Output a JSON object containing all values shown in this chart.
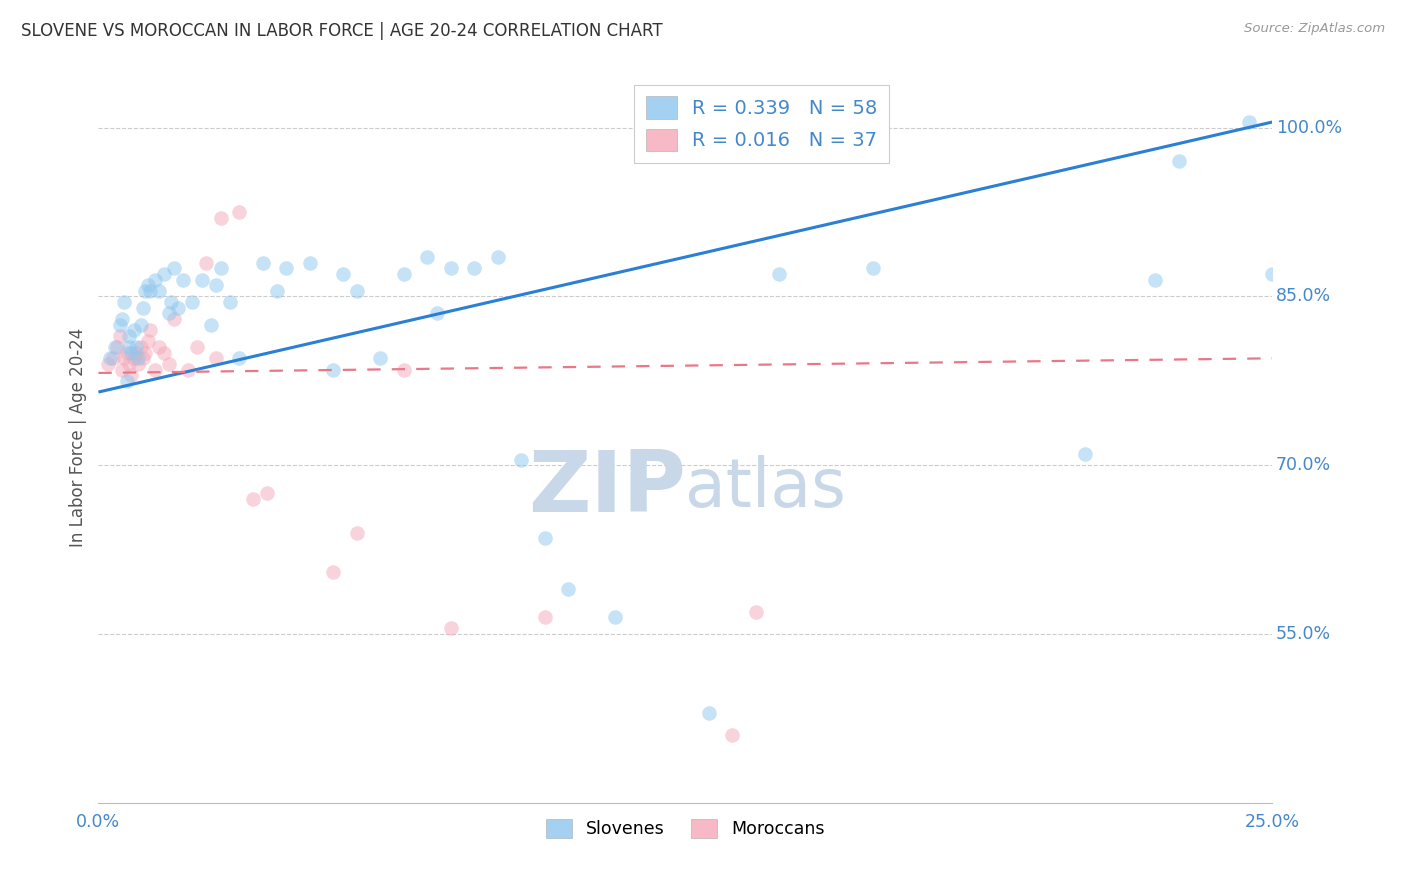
{
  "title": "SLOVENE VS MOROCCAN IN LABOR FORCE | AGE 20-24 CORRELATION CHART",
  "source": "Source: ZipAtlas.com",
  "ylabel": "In Labor Force | Age 20-24",
  "xmin": 0.0,
  "xmax": 25.0,
  "ymin": 40.0,
  "ymax": 105.0,
  "ytick_values": [
    55.0,
    70.0,
    85.0,
    100.0
  ],
  "ytick_labels": [
    "55.0%",
    "70.0%",
    "85.0%",
    "100.0%"
  ],
  "xtick_values": [
    0.0,
    25.0
  ],
  "xtick_labels": [
    "0.0%",
    "25.0%"
  ],
  "slovene_R": "R = 0.339",
  "slovene_N": "N = 58",
  "moroccan_R": "R = 0.016",
  "moroccan_N": "N = 37",
  "slovene_dot_color": "#8EC6EE",
  "moroccan_dot_color": "#F5A8B8",
  "slovene_line_color": "#2B7FD4",
  "moroccan_line_color": "#E87888",
  "watermark_color": "#C8D8E8",
  "label_color": "#4488CC",
  "title_color": "#333333",
  "source_color": "#999999",
  "grid_color": "#CCCCCC",
  "background": "#FFFFFF",
  "dot_size": 110,
  "dot_alpha": 0.5,
  "slovene_x": [
    0.25,
    0.35,
    0.45,
    0.5,
    0.55,
    0.6,
    0.65,
    0.65,
    0.7,
    0.75,
    0.8,
    0.85,
    0.9,
    0.95,
    1.0,
    1.05,
    1.1,
    1.2,
    1.3,
    1.4,
    1.5,
    1.55,
    1.6,
    1.7,
    1.8,
    2.0,
    2.2,
    2.4,
    2.5,
    2.6,
    2.8,
    3.0,
    3.5,
    3.8,
    4.0,
    4.5,
    5.0,
    5.2,
    5.5,
    6.0,
    6.5,
    7.0,
    7.2,
    7.5,
    8.0,
    8.5,
    9.0,
    9.5,
    10.0,
    11.0,
    13.0,
    14.5,
    16.5,
    21.0,
    22.5,
    23.0,
    24.5,
    25.0
  ],
  "slovene_y": [
    79.5,
    80.5,
    82.5,
    83.0,
    84.5,
    77.5,
    80.5,
    81.5,
    80.0,
    82.0,
    80.5,
    79.5,
    82.5,
    84.0,
    85.5,
    86.0,
    85.5,
    86.5,
    85.5,
    87.0,
    83.5,
    84.5,
    87.5,
    84.0,
    86.5,
    84.5,
    86.5,
    82.5,
    86.0,
    87.5,
    84.5,
    79.5,
    88.0,
    85.5,
    87.5,
    88.0,
    78.5,
    87.0,
    85.5,
    79.5,
    87.0,
    88.5,
    83.5,
    87.5,
    87.5,
    88.5,
    70.5,
    63.5,
    59.0,
    56.5,
    48.0,
    87.0,
    87.5,
    71.0,
    86.5,
    97.0,
    100.5,
    87.0
  ],
  "moroccan_x": [
    0.2,
    0.3,
    0.4,
    0.45,
    0.5,
    0.55,
    0.6,
    0.65,
    0.7,
    0.75,
    0.8,
    0.85,
    0.9,
    0.95,
    1.0,
    1.05,
    1.1,
    1.2,
    1.3,
    1.4,
    1.5,
    1.6,
    1.9,
    2.1,
    2.3,
    2.5,
    2.6,
    3.0,
    3.3,
    3.6,
    5.0,
    5.5,
    6.5,
    7.5,
    9.5,
    13.5,
    14.0
  ],
  "moroccan_y": [
    79.0,
    79.5,
    80.5,
    81.5,
    78.5,
    79.5,
    80.0,
    79.0,
    78.0,
    79.5,
    80.0,
    79.0,
    80.5,
    79.5,
    80.0,
    81.0,
    82.0,
    78.5,
    80.5,
    80.0,
    79.0,
    83.0,
    78.5,
    80.5,
    88.0,
    79.5,
    92.0,
    92.5,
    67.0,
    67.5,
    60.5,
    64.0,
    78.5,
    55.5,
    56.5,
    46.0,
    57.0
  ],
  "slovene_trend_x": [
    0.0,
    25.0
  ],
  "slovene_trend_y": [
    76.5,
    100.5
  ],
  "moroccan_trend_x": [
    0.0,
    25.0
  ],
  "moroccan_trend_y": [
    78.2,
    79.5
  ]
}
